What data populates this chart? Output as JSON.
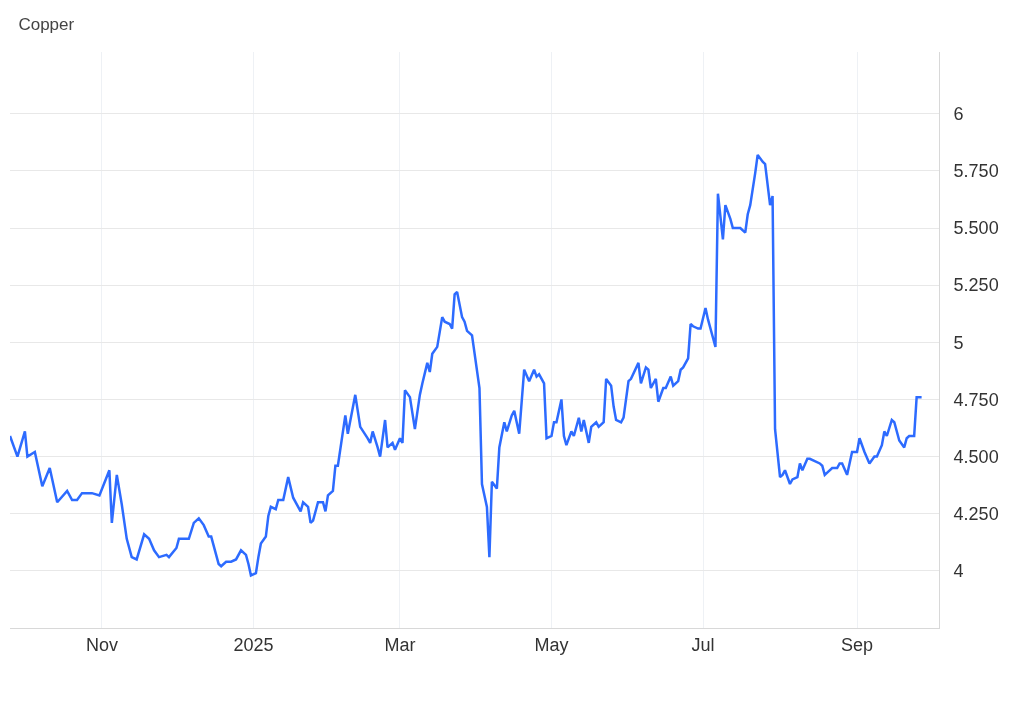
{
  "chart_data": {
    "type": "line",
    "title": "Copper",
    "xlim": [
      "2024-09-25",
      "2025-10-04"
    ],
    "xticks": [
      {
        "value": "2024-11-01",
        "label": "Nov"
      },
      {
        "value": "2025-01-01",
        "label": "2025"
      },
      {
        "value": "2025-03-01",
        "label": "Mar"
      },
      {
        "value": "2025-05-01",
        "label": "May"
      },
      {
        "value": "2025-07-01",
        "label": "Jul"
      },
      {
        "value": "2025-09-01",
        "label": "Sep"
      }
    ],
    "ylim": [
      3.75,
      6.27
    ],
    "yticks": [
      4,
      {
        "value": 4.25,
        "label": "4.250"
      },
      {
        "value": 4.5,
        "label": "4.500"
      },
      {
        "value": 4.75,
        "label": "4.750"
      },
      5,
      {
        "value": 5.25,
        "label": "5.250"
      },
      {
        "value": 5.5,
        "label": "5.500"
      },
      {
        "value": 5.75,
        "label": "5.750"
      },
      6
    ],
    "grid": true,
    "marker": "none",
    "line_style": "solid",
    "x": [
      "2024-09-25",
      "2024-09-28",
      "2024-10-01",
      "2024-10-02",
      "2024-10-05",
      "2024-10-08",
      "2024-10-11",
      "2024-10-14",
      "2024-10-18",
      "2024-10-20",
      "2024-10-22",
      "2024-10-24",
      "2024-10-28",
      "2024-10-31",
      "2024-11-04",
      "2024-11-05",
      "2024-11-07",
      "2024-11-09",
      "2024-11-11",
      "2024-11-13",
      "2024-11-15",
      "2024-11-18",
      "2024-11-20",
      "2024-11-22",
      "2024-11-24",
      "2024-11-27",
      "2024-11-28",
      "2024-12-01",
      "2024-12-02",
      "2024-12-06",
      "2024-12-08",
      "2024-12-10",
      "2024-12-12",
      "2024-12-14",
      "2024-12-15",
      "2024-12-18",
      "2024-12-19",
      "2024-12-21",
      "2024-12-23",
      "2024-12-25",
      "2024-12-27",
      "2024-12-29",
      "2024-12-30",
      "2024-12-31",
      "2025-01-02",
      "2025-01-03",
      "2025-01-04",
      "2025-01-06",
      "2025-01-07",
      "2025-01-08",
      "2025-01-10",
      "2025-01-11",
      "2025-01-13",
      "2025-01-15",
      "2025-01-17",
      "2025-01-20",
      "2025-01-21",
      "2025-01-23",
      "2025-01-24",
      "2025-01-25",
      "2025-01-27",
      "2025-01-29",
      "2025-01-30",
      "2025-01-31",
      "2025-02-02",
      "2025-02-03",
      "2025-02-04",
      "2025-02-07",
      "2025-02-08",
      "2025-02-11",
      "2025-02-13",
      "2025-02-16",
      "2025-02-17",
      "2025-02-18",
      "2025-02-20",
      "2025-02-21",
      "2025-02-23",
      "2025-02-24",
      "2025-02-26",
      "2025-02-27",
      "2025-03-01",
      "2025-03-02",
      "2025-03-03",
      "2025-03-05",
      "2025-03-07",
      "2025-03-09",
      "2025-03-10",
      "2025-03-12",
      "2025-03-13",
      "2025-03-14",
      "2025-03-16",
      "2025-03-18",
      "2025-03-19",
      "2025-03-21",
      "2025-03-22",
      "2025-03-23",
      "2025-03-24",
      "2025-03-26",
      "2025-03-27",
      "2025-03-28",
      "2025-03-30",
      "2025-04-02",
      "2025-04-03",
      "2025-04-05",
      "2025-04-06",
      "2025-04-07",
      "2025-04-09",
      "2025-04-10",
      "2025-04-12",
      "2025-04-13",
      "2025-04-15",
      "2025-04-16",
      "2025-04-18",
      "2025-04-20",
      "2025-04-22",
      "2025-04-24",
      "2025-04-25",
      "2025-04-26",
      "2025-04-28",
      "2025-04-29",
      "2025-05-01",
      "2025-05-02",
      "2025-05-03",
      "2025-05-05",
      "2025-05-06",
      "2025-05-07",
      "2025-05-09",
      "2025-05-10",
      "2025-05-12",
      "2025-05-13",
      "2025-05-14",
      "2025-05-16",
      "2025-05-17",
      "2025-05-19",
      "2025-05-20",
      "2025-05-22",
      "2025-05-23",
      "2025-05-25",
      "2025-05-26",
      "2025-05-27",
      "2025-05-29",
      "2025-05-30",
      "2025-06-01",
      "2025-06-02",
      "2025-06-05",
      "2025-06-06",
      "2025-06-08",
      "2025-06-09",
      "2025-06-10",
      "2025-06-12",
      "2025-06-13",
      "2025-06-15",
      "2025-06-16",
      "2025-06-18",
      "2025-06-19",
      "2025-06-21",
      "2025-06-22",
      "2025-06-23",
      "2025-06-25",
      "2025-06-26",
      "2025-06-27",
      "2025-06-29",
      "2025-06-30",
      "2025-07-02",
      "2025-07-03",
      "2025-07-05",
      "2025-07-06",
      "2025-07-07",
      "2025-07-09",
      "2025-07-10",
      "2025-07-12",
      "2025-07-13",
      "2025-07-15",
      "2025-07-16",
      "2025-07-18",
      "2025-07-19",
      "2025-07-20",
      "2025-07-22",
      "2025-07-23",
      "2025-07-25",
      "2025-07-26",
      "2025-07-28",
      "2025-07-29",
      "2025-07-30",
      "2025-08-01",
      "2025-08-02",
      "2025-08-03",
      "2025-08-05",
      "2025-08-06",
      "2025-08-08",
      "2025-08-09",
      "2025-08-10",
      "2025-08-12",
      "2025-08-13",
      "2025-08-15",
      "2025-08-17",
      "2025-08-18",
      "2025-08-19",
      "2025-08-20",
      "2025-08-22",
      "2025-08-24",
      "2025-08-25",
      "2025-08-26",
      "2025-08-28",
      "2025-08-29",
      "2025-08-30",
      "2025-09-01",
      "2025-09-02",
      "2025-09-04",
      "2025-09-06",
      "2025-09-08",
      "2025-09-09",
      "2025-09-11",
      "2025-09-12",
      "2025-09-13",
      "2025-09-15",
      "2025-09-16",
      "2025-09-18",
      "2025-09-20",
      "2025-09-21",
      "2025-09-22",
      "2025-09-24",
      "2025-09-25",
      "2025-09-27"
    ],
    "series": [
      {
        "color": "#2d6bff",
        "values": [
          4.59,
          4.5,
          4.61,
          4.5,
          4.52,
          4.37,
          4.45,
          4.3,
          4.35,
          4.31,
          4.31,
          4.34,
          4.34,
          4.33,
          4.44,
          4.21,
          4.42,
          4.29,
          4.14,
          4.06,
          4.05,
          4.16,
          4.14,
          4.09,
          4.06,
          4.07,
          4.06,
          4.1,
          4.14,
          4.14,
          4.21,
          4.23,
          4.2,
          4.15,
          4.15,
          4.03,
          4.02,
          4.04,
          4.04,
          4.05,
          4.09,
          4.07,
          4.03,
          3.98,
          3.99,
          4.06,
          4.12,
          4.15,
          4.24,
          4.28,
          4.27,
          4.31,
          4.31,
          4.41,
          4.32,
          4.26,
          4.3,
          4.28,
          4.21,
          4.22,
          4.3,
          4.3,
          4.26,
          4.33,
          4.35,
          4.46,
          4.46,
          4.68,
          4.6,
          4.77,
          4.63,
          4.58,
          4.56,
          4.61,
          4.54,
          4.5,
          4.66,
          4.54,
          4.56,
          4.53,
          4.58,
          4.56,
          4.79,
          4.76,
          4.62,
          4.77,
          4.82,
          4.91,
          4.87,
          4.95,
          4.98,
          5.11,
          5.09,
          5.08,
          5.06,
          5.21,
          5.22,
          5.11,
          5.09,
          5.05,
          5.03,
          4.8,
          4.38,
          4.28,
          4.06,
          4.39,
          4.36,
          4.54,
          4.65,
          4.61,
          4.68,
          4.7,
          4.6,
          4.88,
          4.83,
          4.88,
          4.85,
          4.86,
          4.82,
          4.58,
          4.59,
          4.65,
          4.65,
          4.75,
          4.59,
          4.55,
          4.61,
          4.59,
          4.67,
          4.61,
          4.66,
          4.56,
          4.63,
          4.65,
          4.63,
          4.65,
          4.84,
          4.81,
          4.72,
          4.66,
          4.65,
          4.67,
          4.83,
          4.84,
          4.91,
          4.82,
          4.89,
          4.88,
          4.8,
          4.84,
          4.74,
          4.8,
          4.8,
          4.85,
          4.81,
          4.83,
          4.88,
          4.89,
          4.93,
          5.08,
          5.07,
          5.06,
          5.06,
          5.15,
          5.1,
          5.02,
          4.98,
          5.65,
          5.45,
          5.6,
          5.54,
          5.5,
          5.5,
          5.5,
          5.48,
          5.56,
          5.6,
          5.74,
          5.82,
          5.79,
          5.78,
          5.6,
          5.64,
          4.62,
          4.41,
          4.42,
          4.44,
          4.38,
          4.4,
          4.41,
          4.47,
          4.44,
          4.49,
          4.49,
          4.48,
          4.47,
          4.46,
          4.42,
          4.43,
          4.45,
          4.45,
          4.47,
          4.47,
          4.42,
          4.47,
          4.52,
          4.52,
          4.58,
          4.52,
          4.47,
          4.5,
          4.5,
          4.55,
          4.61,
          4.59,
          4.66,
          4.65,
          4.57,
          4.54,
          4.58,
          4.59,
          4.59,
          4.76,
          4.76
        ]
      }
    ]
  }
}
